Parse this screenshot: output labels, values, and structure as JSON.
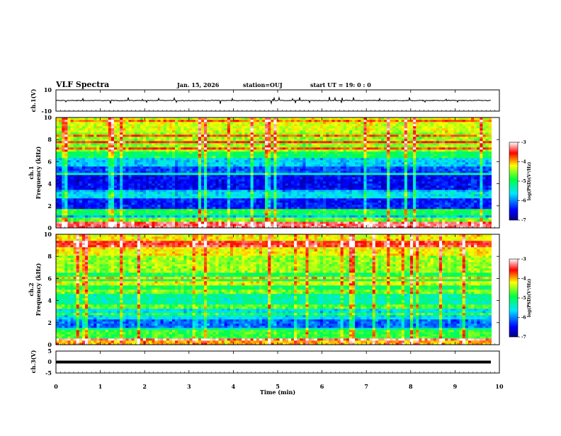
{
  "header": {
    "title": "VLF Spectra",
    "date": "Jan. 15, 2026",
    "station": "station=OUJ",
    "start_ut": "start UT =  19: 0  : 0"
  },
  "chart_data": [
    {
      "type": "line",
      "name": "ch1 waveform",
      "ylabel": "ch.1(V)",
      "ylim": [
        -10,
        10
      ],
      "yticks": [
        10,
        -10
      ],
      "xlim": [
        0,
        10
      ],
      "baseline": 0,
      "data_extent_min": 9.82
    },
    {
      "type": "heatmap",
      "name": "ch1 spectrogram",
      "ylabel_line1": "ch.1",
      "ylabel_line2": "Frequency (kHz)",
      "ylim": [
        0,
        10
      ],
      "yticks": [
        0,
        2,
        4,
        6,
        8,
        10
      ],
      "xlim": [
        0,
        10
      ],
      "data_extent_min": 9.82,
      "colorbar": {
        "label": "log(PSD)(V²/Hz)",
        "range": [
          -7,
          -3
        ],
        "ticks": [
          "-3",
          "-4",
          "-5",
          "-6",
          "-7"
        ]
      },
      "bands": [
        {
          "from": 0,
          "to": 0.5,
          "level": -3.3
        },
        {
          "from": 0.5,
          "to": 1.0,
          "level": -4.6
        },
        {
          "from": 1.0,
          "to": 1.4,
          "level": -5.8
        },
        {
          "from": 1.4,
          "to": 1.8,
          "level": -4.9
        },
        {
          "from": 1.8,
          "to": 2.6,
          "level": -6.4
        },
        {
          "from": 2.6,
          "to": 3.2,
          "level": -5.6
        },
        {
          "from": 3.2,
          "to": 4.8,
          "level": -6.5
        },
        {
          "from": 4.8,
          "to": 5.6,
          "level": -6.2
        },
        {
          "from": 5.6,
          "to": 6.3,
          "level": -5.7
        },
        {
          "from": 6.3,
          "to": 7.0,
          "level": -5.0
        },
        {
          "from": 7.0,
          "to": 8.6,
          "level": -4.5
        },
        {
          "from": 8.6,
          "to": 10.0,
          "level": -4.3
        }
      ]
    },
    {
      "type": "heatmap",
      "name": "ch2 spectrogram",
      "ylabel_line1": "ch.2",
      "ylabel_line2": "Frequency (kHz)",
      "ylim": [
        0,
        10
      ],
      "yticks": [
        0,
        2,
        4,
        6,
        8,
        10
      ],
      "xlim": [
        0,
        10
      ],
      "data_extent_min": 9.82,
      "colorbar": {
        "label": "log(PSD)(V²/Hz)",
        "range": [
          -7,
          -3
        ],
        "ticks": [
          "-3",
          "-4",
          "-5",
          "-6",
          "-7"
        ]
      },
      "bands": [
        {
          "from": 0,
          "to": 0.6,
          "level": -4.0
        },
        {
          "from": 0.6,
          "to": 1.4,
          "level": -4.8
        },
        {
          "from": 1.4,
          "to": 2.4,
          "level": -6.1
        },
        {
          "from": 2.4,
          "to": 3.3,
          "level": -5.6
        },
        {
          "from": 3.3,
          "to": 3.7,
          "level": -4.7
        },
        {
          "from": 3.7,
          "to": 5.0,
          "level": -5.3
        },
        {
          "from": 5.0,
          "to": 6.6,
          "level": -5.0
        },
        {
          "from": 6.6,
          "to": 8.0,
          "level": -4.5
        },
        {
          "from": 8.0,
          "to": 10.0,
          "level": -4.2
        }
      ]
    },
    {
      "type": "line",
      "name": "ch3 waveform",
      "ylabel": "ch.3(V)",
      "ylim": [
        -5,
        5
      ],
      "yticks": [
        5,
        0,
        -5
      ],
      "xlim": [
        0,
        10
      ],
      "baseline": 0,
      "data_extent_min": 9.82
    }
  ],
  "xaxis": {
    "label": "Time (min)",
    "ticks": [
      0,
      1,
      2,
      3,
      4,
      5,
      6,
      7,
      8,
      9,
      10
    ]
  }
}
